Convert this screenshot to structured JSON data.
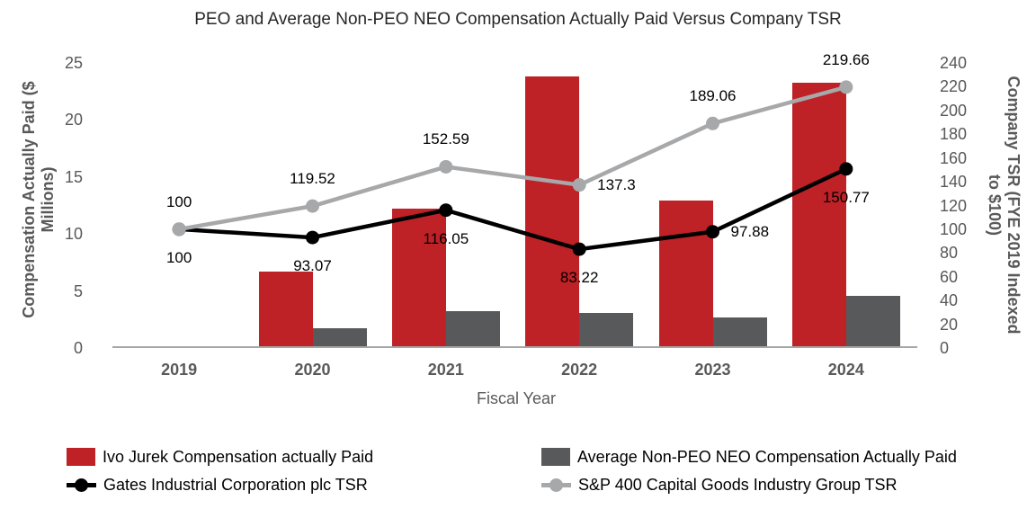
{
  "title": "PEO and Average Non-PEO NEO Compensation Actually Paid Versus Company TSR",
  "chart_data": {
    "type": "combo-bar-line",
    "categories": [
      "2019",
      "2020",
      "2021",
      "2022",
      "2023",
      "2024"
    ],
    "xlabel": "Fiscal Year",
    "grid": false,
    "legend_position": "bottom",
    "left_axis": {
      "label": "Compensation Actually Paid ($ Millions)",
      "ticks": [
        0,
        5,
        10,
        15,
        20,
        25
      ],
      "range": [
        0,
        25
      ]
    },
    "right_axis": {
      "label": "Company TSR (FYE 2019 Indexed to $100)",
      "ticks": [
        0,
        20,
        40,
        60,
        80,
        100,
        120,
        140,
        160,
        180,
        200,
        220,
        240
      ],
      "range": [
        0,
        240
      ]
    },
    "series": [
      {
        "name": "Ivo Jurek Compensation actually Paid",
        "type": "bar",
        "axis": "left",
        "color": "#be2126",
        "values": [
          0,
          6.7,
          12.2,
          23.8,
          12.9,
          23.3
        ]
      },
      {
        "name": "Average Non-PEO NEO Compensation Actually Paid",
        "type": "bar",
        "axis": "left",
        "color": "#58595b",
        "values": [
          0,
          1.7,
          3.2,
          3.1,
          2.7,
          4.6
        ]
      },
      {
        "name": "Gates Industrial Corporation plc TSR",
        "type": "line",
        "axis": "right",
        "color": "#000000",
        "values": [
          100,
          93.07,
          116.05,
          83.22,
          97.88,
          150.77
        ],
        "point_labels": [
          "100",
          "93.07",
          "116.05",
          "83.22",
          "97.88",
          "150.77"
        ],
        "label_positions": [
          "below",
          "below",
          "below",
          "below",
          "right",
          "below"
        ]
      },
      {
        "name": "S&P 400 Capital Goods Industry Group TSR",
        "type": "line",
        "axis": "right",
        "color": "#a7a8aa",
        "values": [
          100,
          119.52,
          152.59,
          137.3,
          189.06,
          219.66
        ],
        "point_labels": [
          "100",
          "119.52",
          "152.59",
          "137.3",
          "189.06",
          "219.66"
        ],
        "label_positions": [
          "above",
          "above",
          "above",
          "right",
          "above",
          "above"
        ]
      }
    ],
    "colors": {
      "axis_text": "#595959",
      "axis_line": "#a6a6a6",
      "data_label": "#000000",
      "background": "#ffffff"
    }
  }
}
